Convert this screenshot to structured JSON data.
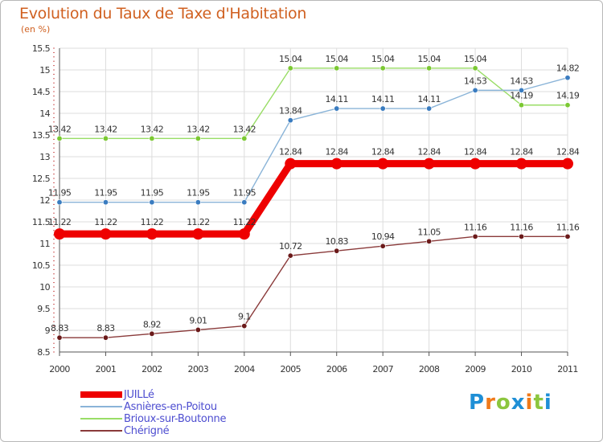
{
  "title": "Evolution du Taux de Taxe d'Habitation",
  "unit_label": "(en %)",
  "brand": {
    "letters": [
      "P",
      "r",
      "o",
      "x",
      "i",
      "t",
      "i"
    ],
    "colors": [
      "#1f8fd6",
      "#f07a1a",
      "#8cc63e",
      "#1f8fd6",
      "#f07a1a",
      "#8cc63e",
      "#1f8fd6"
    ]
  },
  "chart_data": {
    "type": "line",
    "title": "Evolution du Taux de Taxe d'Habitation",
    "ylabel": "(en %)",
    "xlabel": "",
    "x": [
      "2000",
      "2001",
      "2002",
      "2003",
      "2004",
      "2005",
      "2006",
      "2007",
      "2008",
      "2009",
      "2010",
      "2011"
    ],
    "ylim": [
      8.5,
      15.5
    ],
    "yticks": [
      "8.5",
      "9",
      "9.5",
      "10",
      "10.5",
      "11",
      "11.5",
      "12",
      "12.5",
      "13",
      "13.5",
      "14",
      "14.5",
      "15",
      "15.5"
    ],
    "grid": true,
    "legend_position": "bottom-left",
    "series": [
      {
        "name": "JUILLé",
        "color": "#ee0000",
        "marker_color": "#ee0000",
        "values": [
          11.22,
          11.22,
          11.22,
          11.22,
          11.22,
          12.84,
          12.84,
          12.84,
          12.84,
          12.84,
          12.84,
          12.84
        ],
        "labels": [
          "11.22",
          "11.22",
          "11.22",
          "11.22",
          "11.22",
          "12.84",
          "12.84",
          "12.84",
          "12.84",
          "12.84",
          "12.84",
          "12.84"
        ]
      },
      {
        "name": "Asnières-en-Poitou",
        "color": "#8ab4d8",
        "marker_color": "#3a7cc0",
        "values": [
          11.95,
          11.95,
          11.95,
          11.95,
          11.95,
          13.84,
          14.11,
          14.11,
          14.11,
          14.53,
          14.53,
          14.82
        ],
        "labels": [
          "11.95",
          "11.95",
          "11.95",
          "11.95",
          "11.95",
          "13.84",
          "14.11",
          "14.11",
          "14.11",
          "14.53",
          "14.53",
          "14.82"
        ]
      },
      {
        "name": "Brioux-sur-Boutonne",
        "color": "#99dd66",
        "marker_color": "#7bc832",
        "values": [
          13.42,
          13.42,
          13.42,
          13.42,
          13.42,
          15.04,
          15.04,
          15.04,
          15.04,
          15.04,
          14.19,
          14.19
        ],
        "labels": [
          "13.42",
          "13.42",
          "13.42",
          "13.42",
          "13.42",
          "15.04",
          "15.04",
          "15.04",
          "15.04",
          "15.04",
          "14.19",
          "14.19"
        ]
      },
      {
        "name": "Chérigné",
        "color": "#8a3a3a",
        "marker_color": "#6b1a1a",
        "values": [
          8.83,
          8.83,
          8.92,
          9.01,
          9.1,
          10.72,
          10.83,
          10.94,
          11.05,
          11.16,
          11.16,
          11.16
        ],
        "labels": [
          "8.83",
          "8.83",
          "8.92",
          "9.01",
          "9.1",
          "10.72",
          "10.83",
          "10.94",
          "11.05",
          "11.16",
          "11.16",
          "11.16"
        ]
      }
    ]
  }
}
